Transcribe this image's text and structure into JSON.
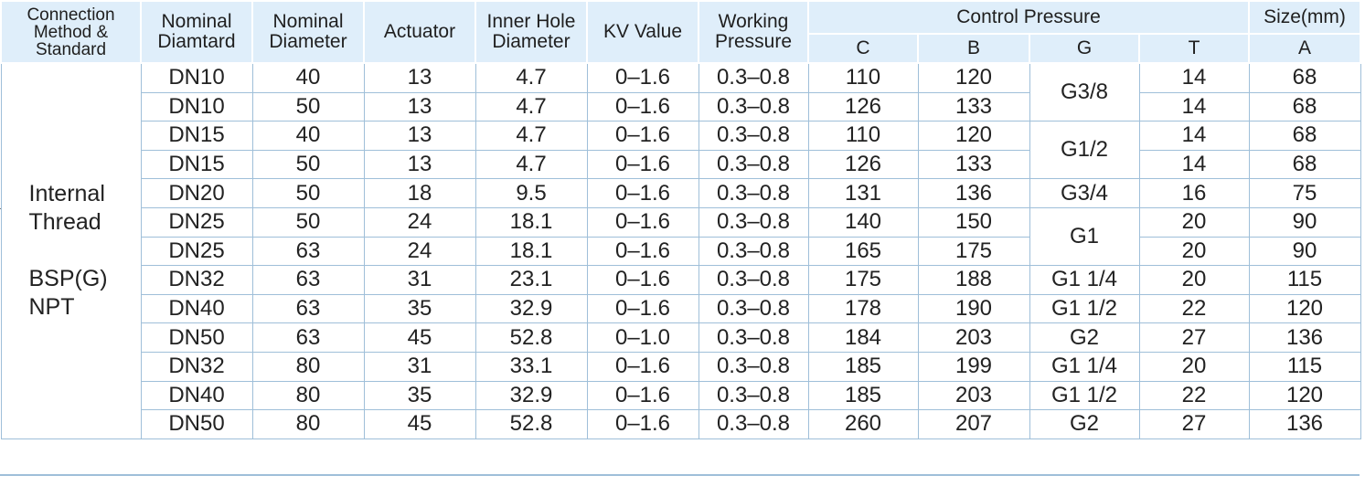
{
  "headers": {
    "connection": [
      "Connection",
      "Method &",
      "Standard"
    ],
    "nominal_diamtard": [
      "Nominal",
      "Diamtard"
    ],
    "nominal_diameter": [
      "Nominal",
      "Diameter"
    ],
    "actuator": "Actuator",
    "inner_hole": [
      "Inner Hole",
      "Diameter"
    ],
    "kv_value": "KV Value",
    "working_pressure": [
      "Working",
      "Pressure"
    ],
    "control_pressure": "Control Pressure",
    "size": "Size(mm)",
    "sub": {
      "c": "C",
      "b": "B",
      "g": "G",
      "t": "T",
      "a": "A"
    }
  },
  "method": {
    "line1": "Internal",
    "line2": "Thread",
    "line3": "BSP(G)",
    "line4": "NPT"
  },
  "rows": [
    {
      "dn": "DN10",
      "nd": "40",
      "act": "13",
      "ihd": "4.7",
      "kv": "0–1.6",
      "wp": "0.3–0.8",
      "c": "110",
      "b": "120",
      "t": "14",
      "a": "68"
    },
    {
      "dn": "DN10",
      "nd": "50",
      "act": "13",
      "ihd": "4.7",
      "kv": "0–1.6",
      "wp": "0.3–0.8",
      "c": "126",
      "b": "133",
      "t": "14",
      "a": "68"
    },
    {
      "dn": "DN15",
      "nd": "40",
      "act": "13",
      "ihd": "4.7",
      "kv": "0–1.6",
      "wp": "0.3–0.8",
      "c": "110",
      "b": "120",
      "t": "14",
      "a": "68"
    },
    {
      "dn": "DN15",
      "nd": "50",
      "act": "13",
      "ihd": "4.7",
      "kv": "0–1.6",
      "wp": "0.3–0.8",
      "c": "126",
      "b": "133",
      "t": "14",
      "a": "68"
    },
    {
      "dn": "DN20",
      "nd": "50",
      "act": "18",
      "ihd": "9.5",
      "kv": "0–1.6",
      "wp": "0.3–0.8",
      "c": "131",
      "b": "136",
      "t": "16",
      "a": "75"
    },
    {
      "dn": "DN25",
      "nd": "50",
      "act": "24",
      "ihd": "18.1",
      "kv": "0–1.6",
      "wp": "0.3–0.8",
      "c": "140",
      "b": "150",
      "t": "20",
      "a": "90"
    },
    {
      "dn": "DN25",
      "nd": "63",
      "act": "24",
      "ihd": "18.1",
      "kv": "0–1.6",
      "wp": "0.3–0.8",
      "c": "165",
      "b": "175",
      "t": "20",
      "a": "90"
    },
    {
      "dn": "DN32",
      "nd": "63",
      "act": "31",
      "ihd": "23.1",
      "kv": "0–1.6",
      "wp": "0.3–0.8",
      "c": "175",
      "b": "188",
      "t": "20",
      "a": "115"
    },
    {
      "dn": "DN40",
      "nd": "63",
      "act": "35",
      "ihd": "32.9",
      "kv": "0–1.6",
      "wp": "0.3–0.8",
      "c": "178",
      "b": "190",
      "t": "22",
      "a": "120"
    },
    {
      "dn": "DN50",
      "nd": "63",
      "act": "45",
      "ihd": "52.8",
      "kv": "0–1.0",
      "wp": "0.3–0.8",
      "c": "184",
      "b": "203",
      "t": "27",
      "a": "136"
    },
    {
      "dn": "DN32",
      "nd": "80",
      "act": "31",
      "ihd": "33.1",
      "kv": "0–1.6",
      "wp": "0.3–0.8",
      "c": "185",
      "b": "199",
      "t": "20",
      "a": "115"
    },
    {
      "dn": "DN40",
      "nd": "80",
      "act": "35",
      "ihd": "32.9",
      "kv": "0–1.6",
      "wp": "0.3–0.8",
      "c": "185",
      "b": "203",
      "t": "22",
      "a": "120"
    },
    {
      "dn": "DN50",
      "nd": "80",
      "act": "45",
      "ihd": "52.8",
      "kv": "0–1.6",
      "wp": "0.3–0.8",
      "c": "260",
      "b": "207",
      "t": "27",
      "a": "136"
    }
  ],
  "g_values": [
    "G3/8",
    "G1/2",
    "G3/4",
    "G1",
    "G1 1/4",
    "G1 1/2",
    "G2",
    "G1 1/4",
    "G1 1/2",
    "G2"
  ],
  "colors": {
    "header_bg": "#dfeefa",
    "grid": "#9fbfd9"
  }
}
